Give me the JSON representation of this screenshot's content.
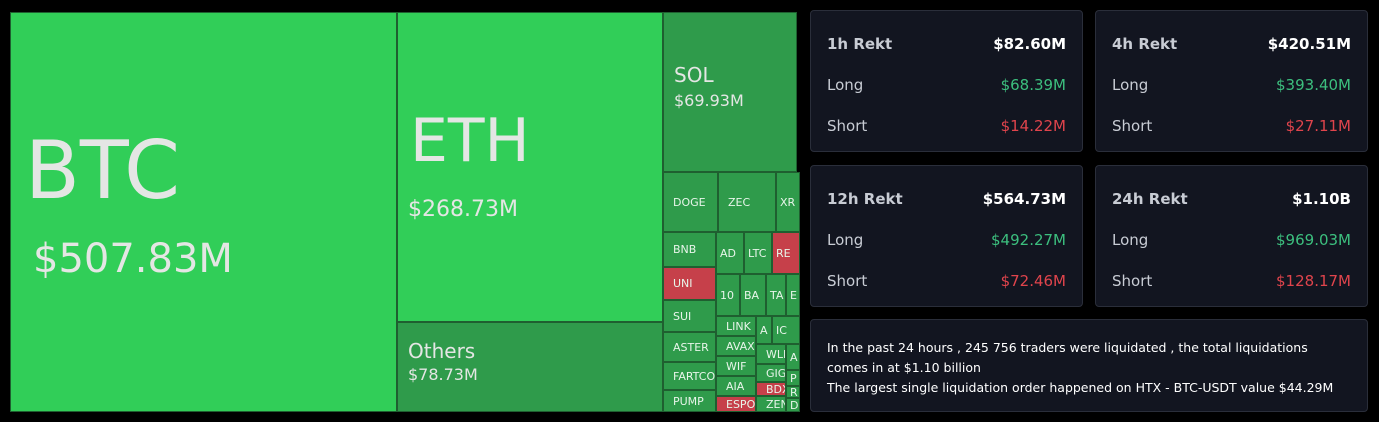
{
  "treemap": {
    "tiles": [
      {
        "label": "BTC",
        "value": "$507.83M"
      },
      {
        "label": "ETH",
        "value": "$268.73M"
      },
      {
        "label": "Others",
        "value": "$78.73M"
      },
      {
        "label": "SOL",
        "value": "$69.93M"
      },
      {
        "label": "DOGE"
      },
      {
        "label": "ZEC"
      },
      {
        "label": "XR"
      },
      {
        "label": "BNB"
      },
      {
        "label": "UNI"
      },
      {
        "label": "SUI"
      },
      {
        "label": "ASTER"
      },
      {
        "label": "FARTCO"
      },
      {
        "label": "PUMP"
      },
      {
        "label": "AD"
      },
      {
        "label": "LTC"
      },
      {
        "label": "RE"
      },
      {
        "label": "10"
      },
      {
        "label": "BA"
      },
      {
        "label": "TA"
      },
      {
        "label": "E"
      },
      {
        "label": "LINK"
      },
      {
        "label": "A"
      },
      {
        "label": "IC"
      },
      {
        "label": "AVAX"
      },
      {
        "label": "WIF"
      },
      {
        "label": "AIA"
      },
      {
        "label": "ESPO"
      },
      {
        "label": "WLI"
      },
      {
        "label": "GIG"
      },
      {
        "label": "BDX"
      },
      {
        "label": "ZEN"
      },
      {
        "label": "A"
      },
      {
        "label": "P"
      },
      {
        "label": "R"
      },
      {
        "label": "D"
      }
    ]
  },
  "cards": [
    {
      "title": "1h Rekt",
      "total": "$82.60M",
      "long_label": "Long",
      "long": "$68.39M",
      "short_label": "Short",
      "short": "$14.22M"
    },
    {
      "title": "4h Rekt",
      "total": "$420.51M",
      "long_label": "Long",
      "long": "$393.40M",
      "short_label": "Short",
      "short": "$27.11M"
    },
    {
      "title": "12h Rekt",
      "total": "$564.73M",
      "long_label": "Long",
      "long": "$492.27M",
      "short_label": "Short",
      "short": "$72.46M"
    },
    {
      "title": "24h Rekt",
      "total": "$1.10B",
      "long_label": "Long",
      "long": "$969.03M",
      "short_label": "Short",
      "short": "$128.17M"
    }
  ],
  "summary": {
    "line1": "In the past 24 hours , 245 756 traders were liquidated , the total liquidations comes in at $1.10 billion",
    "line2": "The largest single liquidation order happened on HTX - BTC-USDT value $44.29M"
  }
}
